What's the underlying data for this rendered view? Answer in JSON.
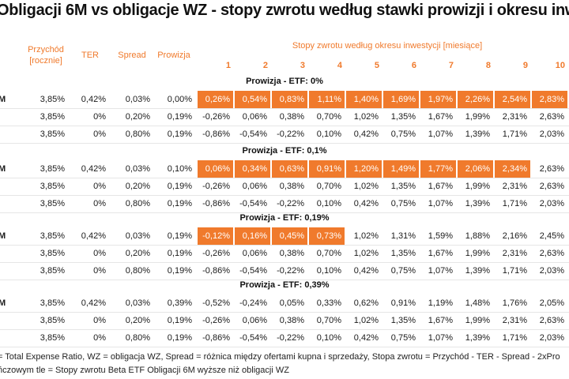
{
  "title": "Obligacji 6M vs obligacje WZ - stopy zwrotu według stawki prowizji i okresu inwe",
  "headers": {
    "income": "Przychód [rocznie]",
    "ter": "TER",
    "spread": "Spread",
    "commission": "Prowizja",
    "returns_group": "Stopy zwrotu według okresu inwestycji [miesiące]",
    "months": [
      "1",
      "2",
      "3",
      "4",
      "5",
      "6",
      "7",
      "8",
      "9",
      "10"
    ]
  },
  "sections": [
    {
      "title": "Prowizja - ETF: 0%",
      "rows": [
        {
          "label": "M",
          "income": "3,85%",
          "ter": "0,42%",
          "spread": "0,03%",
          "commission": "0,00%",
          "values": [
            "0,26%",
            "0,54%",
            "0,83%",
            "1,11%",
            "1,40%",
            "1,69%",
            "1,97%",
            "2,26%",
            "2,54%",
            "2,83%"
          ],
          "highlight": 10
        },
        {
          "label": "",
          "income": "3,85%",
          "ter": "0%",
          "spread": "0,20%",
          "commission": "0,19%",
          "values": [
            "-0,26%",
            "0,06%",
            "0,38%",
            "0,70%",
            "1,02%",
            "1,35%",
            "1,67%",
            "1,99%",
            "2,31%",
            "2,63%"
          ],
          "highlight": 0
        },
        {
          "label": "",
          "income": "3,85%",
          "ter": "0%",
          "spread": "0,80%",
          "commission": "0,19%",
          "values": [
            "-0,86%",
            "-0,54%",
            "-0,22%",
            "0,10%",
            "0,42%",
            "0,75%",
            "1,07%",
            "1,39%",
            "1,71%",
            "2,03%"
          ],
          "highlight": 0
        }
      ]
    },
    {
      "title": "Prowizja - ETF: 0,1%",
      "rows": [
        {
          "label": "M",
          "income": "3,85%",
          "ter": "0,42%",
          "spread": "0,03%",
          "commission": "0,10%",
          "values": [
            "0,06%",
            "0,34%",
            "0,63%",
            "0,91%",
            "1,20%",
            "1,49%",
            "1,77%",
            "2,06%",
            "2,34%",
            "2,63%"
          ],
          "highlight": 9
        },
        {
          "label": "",
          "income": "3,85%",
          "ter": "0%",
          "spread": "0,20%",
          "commission": "0,19%",
          "values": [
            "-0,26%",
            "0,06%",
            "0,38%",
            "0,70%",
            "1,02%",
            "1,35%",
            "1,67%",
            "1,99%",
            "2,31%",
            "2,63%"
          ],
          "highlight": 0
        },
        {
          "label": "",
          "income": "3,85%",
          "ter": "0%",
          "spread": "0,80%",
          "commission": "0,19%",
          "values": [
            "-0,86%",
            "-0,54%",
            "-0,22%",
            "0,10%",
            "0,42%",
            "0,75%",
            "1,07%",
            "1,39%",
            "1,71%",
            "2,03%"
          ],
          "highlight": 0
        }
      ]
    },
    {
      "title": "Prowizja - ETF: 0,19%",
      "rows": [
        {
          "label": "M",
          "income": "3,85%",
          "ter": "0,42%",
          "spread": "0,03%",
          "commission": "0,19%",
          "values": [
            "-0,12%",
            "0,16%",
            "0,45%",
            "0,73%",
            "1,02%",
            "1,31%",
            "1,59%",
            "1,88%",
            "2,16%",
            "2,45%"
          ],
          "highlight": 4
        },
        {
          "label": "",
          "income": "3,85%",
          "ter": "0%",
          "spread": "0,20%",
          "commission": "0,19%",
          "values": [
            "-0,26%",
            "0,06%",
            "0,38%",
            "0,70%",
            "1,02%",
            "1,35%",
            "1,67%",
            "1,99%",
            "2,31%",
            "2,63%"
          ],
          "highlight": 0
        },
        {
          "label": "",
          "income": "3,85%",
          "ter": "0%",
          "spread": "0,80%",
          "commission": "0,19%",
          "values": [
            "-0,86%",
            "-0,54%",
            "-0,22%",
            "0,10%",
            "0,42%",
            "0,75%",
            "1,07%",
            "1,39%",
            "1,71%",
            "2,03%"
          ],
          "highlight": 0
        }
      ]
    },
    {
      "title": "Prowizja - ETF: 0,39%",
      "rows": [
        {
          "label": "M",
          "income": "3,85%",
          "ter": "0,42%",
          "spread": "0,03%",
          "commission": "0,39%",
          "values": [
            "-0,52%",
            "-0,24%",
            "0,05%",
            "0,33%",
            "0,62%",
            "0,91%",
            "1,19%",
            "1,48%",
            "1,76%",
            "2,05%"
          ],
          "highlight": 0
        },
        {
          "label": "",
          "income": "3,85%",
          "ter": "0%",
          "spread": "0,20%",
          "commission": "0,19%",
          "values": [
            "-0,26%",
            "0,06%",
            "0,38%",
            "0,70%",
            "1,02%",
            "1,35%",
            "1,67%",
            "1,99%",
            "2,31%",
            "2,63%"
          ],
          "highlight": 0
        },
        {
          "label": "",
          "income": "3,85%",
          "ter": "0%",
          "spread": "0,80%",
          "commission": "0,19%",
          "values": [
            "-0,86%",
            "-0,54%",
            "-0,22%",
            "0,10%",
            "0,42%",
            "0,75%",
            "1,07%",
            "1,39%",
            "1,71%",
            "2,03%"
          ],
          "highlight": 0
        }
      ]
    }
  ],
  "footnotes": [
    "= Total Expense Ratio, WZ = obligacja WZ, Spread = różnica między ofertami kupna i sprzedaży, Stopa zwrotu = Przychód - TER - Spread - 2xPro",
    "ńczowym tle = Stopy zwrotu Beta ETF Obligacji 6M wyższe niż obligacji WZ"
  ],
  "colors": {
    "accent": "#f07a2c"
  }
}
